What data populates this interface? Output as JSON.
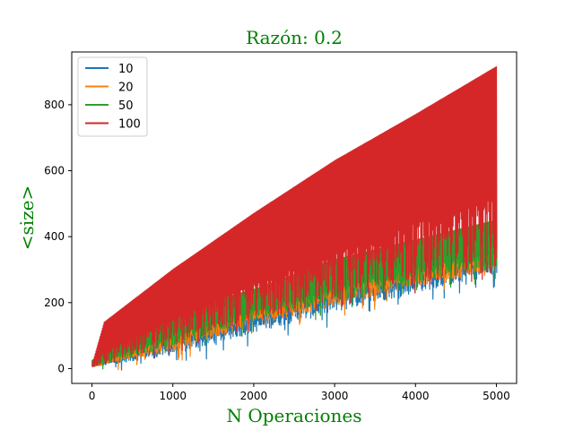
{
  "chart_data": {
    "type": "line",
    "title": "Razón: 0.2",
    "xlabel": "N Operaciones",
    "ylabel": "<size>",
    "label_color": "#008000",
    "xlim": [
      -250,
      5250
    ],
    "ylim": [
      -45,
      960
    ],
    "xticks": [
      0,
      1000,
      2000,
      3000,
      4000,
      5000
    ],
    "yticks": [
      0,
      200,
      400,
      600,
      800
    ],
    "grid": false,
    "legend_position": "top-left",
    "series": [
      {
        "name": "10",
        "color": "#1f77b4",
        "x": [
          0,
          1000,
          2000,
          3000,
          4000,
          5000
        ],
        "upper": [
          10,
          140,
          215,
          300,
          350,
          400
        ],
        "lower": [
          5,
          40,
          110,
          170,
          230,
          285
        ]
      },
      {
        "name": "20",
        "color": "#ff7f0e",
        "x": [
          0,
          1000,
          2000,
          3000,
          4000,
          5000
        ],
        "upper": [
          15,
          160,
          230,
          320,
          370,
          420
        ],
        "lower": [
          5,
          55,
          130,
          190,
          250,
          295
        ]
      },
      {
        "name": "50",
        "color": "#2ca02c",
        "x": [
          0,
          1000,
          2000,
          3000,
          4000,
          5000
        ],
        "upper": [
          25,
          170,
          240,
          330,
          390,
          450
        ],
        "lower": [
          5,
          70,
          145,
          200,
          260,
          305
        ]
      },
      {
        "name": "100",
        "color": "#d62728",
        "x": [
          0,
          150,
          1000,
          2000,
          3000,
          4000,
          5000
        ],
        "upper": [
          10,
          140,
          300,
          470,
          630,
          770,
          915
        ],
        "lower": [
          5,
          10,
          75,
          140,
          205,
          265,
          305
        ]
      }
    ]
  }
}
